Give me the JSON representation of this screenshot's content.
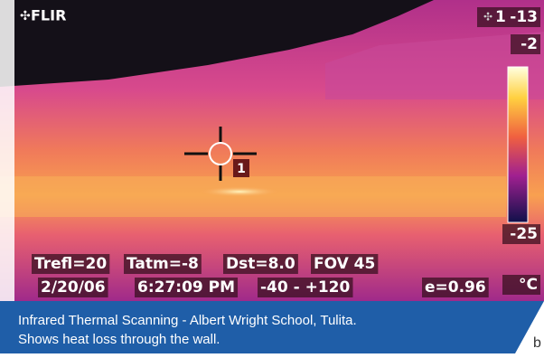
{
  "logo": "FLIR",
  "spot_label": "1",
  "spot_reading": "-13",
  "scale_max": "-2",
  "scale_min": "-25",
  "unit": "°C",
  "marker_label": "1",
  "info": {
    "line1": [
      "Trefl=20",
      "Tatm=-8",
      "Dst=8.0",
      "FOV 45"
    ],
    "line2": [
      "2/20/06",
      "6:27:09 PM",
      "-40 - +120",
      "e=0.96"
    ]
  },
  "caption": [
    "Infrared Thermal Scanning - Albert Wright School, Tulita.",
    "Shows heat loss through the wall."
  ],
  "cut_text": "b"
}
